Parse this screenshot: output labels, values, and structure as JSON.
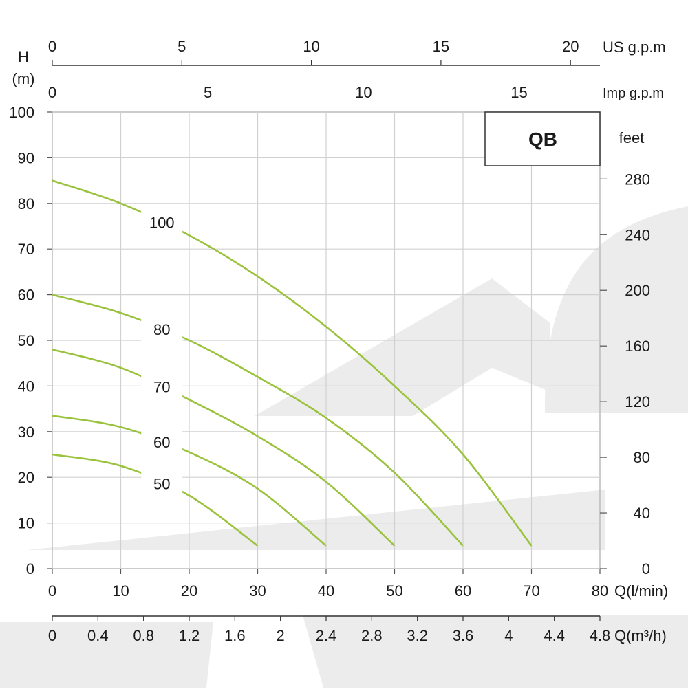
{
  "chart_data": {
    "type": "line",
    "title": "QB",
    "x": {
      "label": "Q(l/min)",
      "ticks": [
        0,
        10,
        20,
        30,
        40,
        50,
        60,
        70,
        80
      ],
      "range": [
        0,
        80
      ]
    },
    "y": {
      "label_line1": "H",
      "label_line2": "(m)",
      "ticks": [
        0,
        10,
        20,
        30,
        40,
        50,
        60,
        70,
        80,
        90,
        100
      ],
      "range": [
        0,
        100
      ]
    },
    "y_right": {
      "label": "feet",
      "ticks": [
        "0",
        "40",
        "80",
        "120",
        "160",
        "200",
        "240",
        "280"
      ],
      "values": [
        0,
        40,
        80,
        120,
        160,
        200,
        240,
        280
      ]
    },
    "x_top_us": {
      "label": "US g.p.m",
      "ticks": [
        "0",
        "5",
        "10",
        "15",
        "20"
      ],
      "values": [
        0,
        5,
        10,
        15,
        20
      ]
    },
    "x_top_imp": {
      "label": "Imp g.p.m",
      "ticks": [
        "0",
        "5",
        "10",
        "15"
      ],
      "values": [
        0,
        5,
        10,
        15
      ]
    },
    "x_bottom_m3h": {
      "label": "Q(m³/h)",
      "ticks": [
        "0",
        "0.4",
        "0.8",
        "1.2",
        "1.6",
        "2",
        "2.4",
        "2.8",
        "3.2",
        "3.6",
        "4",
        "4.4",
        "4.8"
      ],
      "values": [
        0,
        0.4,
        0.8,
        1.2,
        1.6,
        2.0,
        2.4,
        2.8,
        3.2,
        3.6,
        4.0,
        4.4,
        4.8
      ]
    },
    "grid": true,
    "series": [
      {
        "name": "100",
        "x": [
          0,
          10,
          20,
          30,
          40,
          50,
          60,
          70
        ],
        "y": [
          85,
          80,
          73,
          64,
          53,
          40,
          25,
          5
        ]
      },
      {
        "name": "80",
        "x": [
          0,
          10,
          20,
          30,
          40,
          50,
          60
        ],
        "y": [
          60,
          56,
          50,
          42,
          33,
          21,
          5
        ]
      },
      {
        "name": "70",
        "x": [
          0,
          10,
          20,
          30,
          40,
          50
        ],
        "y": [
          48,
          44,
          37,
          29,
          19,
          5
        ]
      },
      {
        "name": "60",
        "x": [
          0,
          10,
          20,
          30,
          40
        ],
        "y": [
          33.5,
          31,
          25.5,
          17.5,
          5
        ]
      },
      {
        "name": "50",
        "x": [
          0,
          10,
          20,
          30
        ],
        "y": [
          25,
          22.5,
          16,
          5
        ]
      }
    ],
    "series_color": "#9ac23c"
  }
}
